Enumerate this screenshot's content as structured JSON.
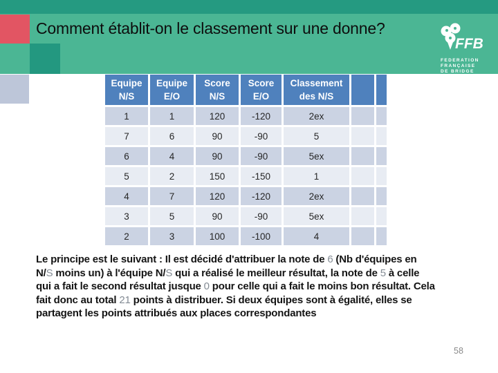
{
  "slide": {
    "title": "Comment établit-on le classement sur une donne?",
    "page_number": "58"
  },
  "logo": {
    "name": "FFB",
    "sublines": [
      "FEDERATION",
      "FRANÇAISE",
      "DE BRIDGE"
    ]
  },
  "table": {
    "columns": [
      {
        "lines": [
          "Equipe",
          "N/S"
        ]
      },
      {
        "lines": [
          "Equipe",
          "E/O"
        ]
      },
      {
        "lines": [
          "Score",
          "N/S"
        ]
      },
      {
        "lines": [
          "Score",
          "E/O"
        ]
      },
      {
        "lines": [
          "Classement",
          "des N/S"
        ]
      },
      {
        "lines": []
      },
      {
        "lines": []
      }
    ],
    "rows": [
      [
        "1",
        "1",
        "120",
        "-120",
        "2ex",
        "",
        ""
      ],
      [
        "7",
        "6",
        "90",
        "-90",
        "5",
        "",
        ""
      ],
      [
        "6",
        "4",
        "90",
        "-90",
        "5ex",
        "",
        ""
      ],
      [
        "5",
        "2",
        "150",
        "-150",
        "1",
        "",
        ""
      ],
      [
        "4",
        "7",
        "120",
        "-120",
        "2ex",
        "",
        ""
      ],
      [
        "3",
        "5",
        "90",
        "-90",
        "5ex",
        "",
        ""
      ],
      [
        "2",
        "3",
        "100",
        "-100",
        "4",
        "",
        ""
      ]
    ]
  },
  "paragraph": {
    "segments": [
      {
        "t": "Le principe est le suivant : Il est décidé d'attribuer la note de "
      },
      {
        "t": "6",
        "m": true
      },
      {
        "t": " (Nb d'équipes en",
        "br": true
      },
      {
        "t": "N/"
      },
      {
        "t": "S",
        "m": true
      },
      {
        "t": " moins un) à l'équipe N/"
      },
      {
        "t": "S",
        "m": true
      },
      {
        "t": " qui a réalisé le meilleur résultat, la note de "
      },
      {
        "t": "5",
        "m": true
      },
      {
        "t": " à celle",
        "br": true
      },
      {
        "t": "qui a fait le second résultat jusque "
      },
      {
        "t": "0",
        "m": true
      },
      {
        "t": " pour celle qui a fait le moins bon résultat. Cela",
        "br": true
      },
      {
        "t": "fait donc au total "
      },
      {
        "t": "21",
        "m": true
      },
      {
        "t": " points à distribuer. Si deux équipes sont à égalité, elles se",
        "br": true
      },
      {
        "t": "partagent les points attribués aux places correspondantes"
      }
    ]
  },
  "colors": {
    "top_bar": "#259a81",
    "title_band": "#4bb694",
    "red_square": "#e25563",
    "dark_green_square": "#239880",
    "gray_square": "#bdc6d9",
    "header_blue": "#4f81bd",
    "row_dark": "#cbd3e3",
    "row_light": "#e8ecf3",
    "muted_text": "#838b94"
  }
}
